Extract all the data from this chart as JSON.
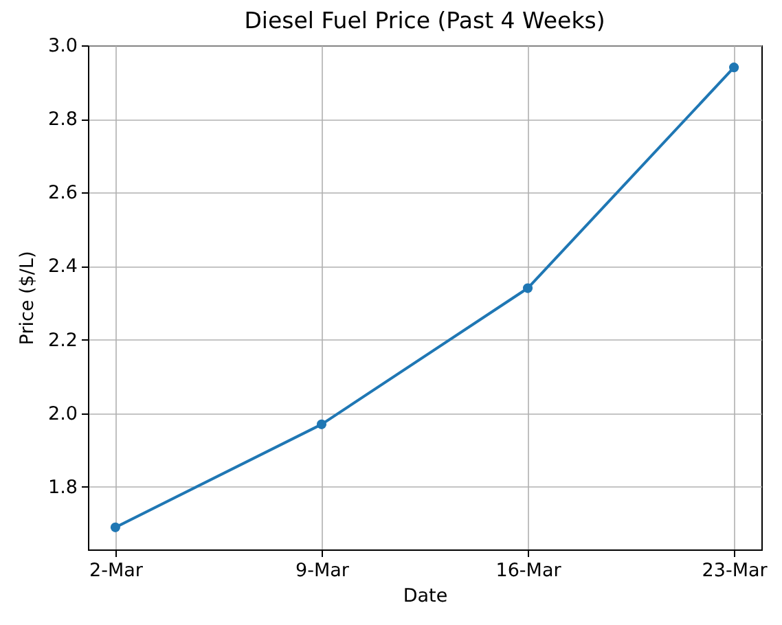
{
  "chart_data": {
    "type": "line",
    "title": "Diesel Fuel Price (Past 4 Weeks)",
    "xlabel": "Date",
    "ylabel": "Price ($/L)",
    "categories": [
      "2-Mar",
      "9-Mar",
      "16-Mar",
      "23-Mar"
    ],
    "values": [
      1.69,
      1.97,
      2.34,
      2.94
    ],
    "color": "#1f77b4",
    "ylim": [
      1.63,
      3.0
    ],
    "yticks": [
      1.8,
      {
        "value": 2.0,
        "label": "2.0"
      },
      2.2,
      2.4,
      2.6,
      2.8,
      {
        "value": 3.0,
        "label": "3.0"
      }
    ],
    "grid": true,
    "marker": "circle",
    "line_style": "solid"
  }
}
